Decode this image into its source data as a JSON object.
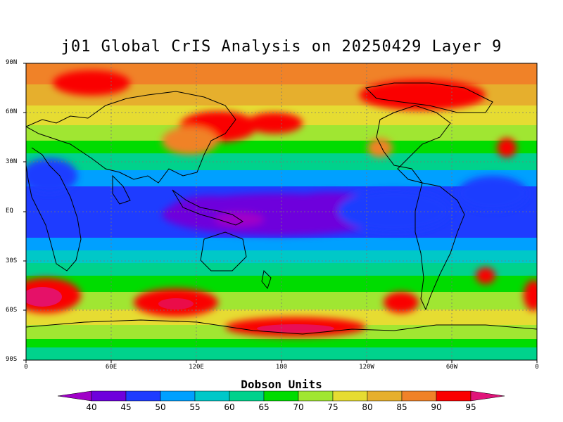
{
  "title": "j01 Global CrIS Analysis on 20250429 Layer 9",
  "lat_labels": [
    "90N",
    "60N",
    "30N",
    "EQ",
    "30S",
    "60S",
    "90S"
  ],
  "lon_labels": [
    "0",
    "60E",
    "120E",
    "180",
    "120W",
    "60W",
    "0"
  ],
  "colorbar": {
    "title": "Dobson Units",
    "levels": [
      "40",
      "45",
      "50",
      "55",
      "60",
      "65",
      "70",
      "75",
      "80",
      "85",
      "90",
      "95"
    ],
    "colors": [
      "#a000c8",
      "#6e00dc",
      "#1e3cff",
      "#00a0ff",
      "#00c8c8",
      "#00d28c",
      "#00dc00",
      "#a0e632",
      "#e6dc32",
      "#e6af2d",
      "#f08228",
      "#fa0000",
      "#e0147a"
    ]
  }
}
